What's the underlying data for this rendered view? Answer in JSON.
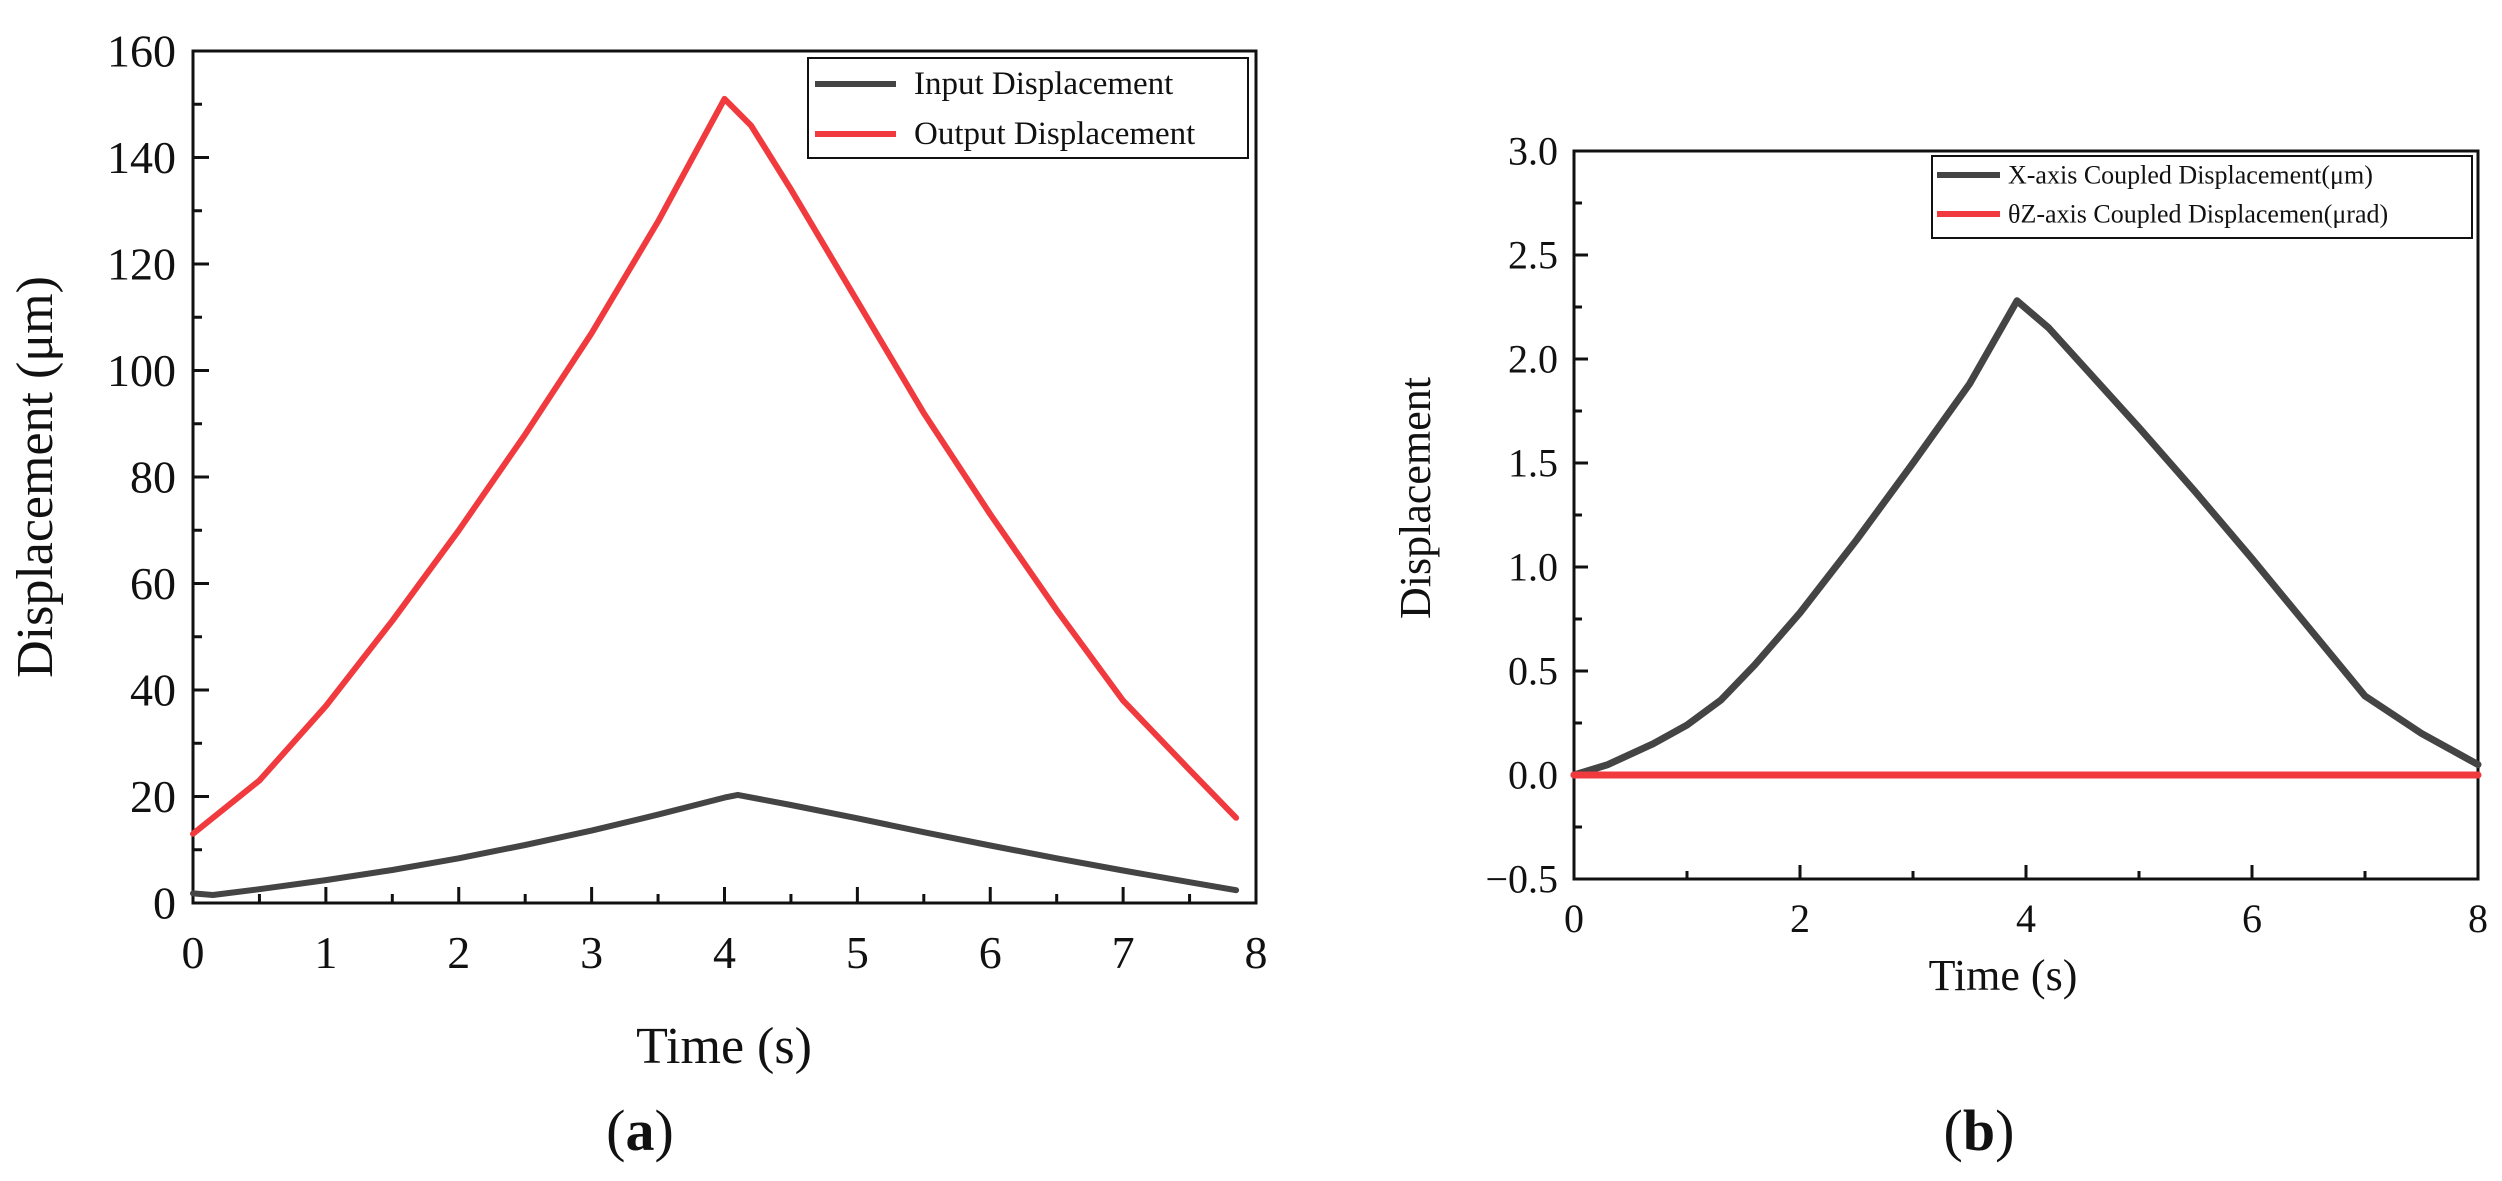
{
  "chart_data": [
    {
      "id": "a",
      "type": "line",
      "caption_letter": "a",
      "title": "",
      "xlabel": "Time (s)",
      "ylabel": "Displacement (μm)",
      "xlim": [
        0,
        8
      ],
      "ylim": [
        0,
        160
      ],
      "xticks": [
        0,
        1,
        2,
        3,
        4,
        5,
        6,
        7,
        8
      ],
      "yticks": [
        0,
        20,
        40,
        60,
        80,
        100,
        120,
        140,
        160
      ],
      "minor_x_step": 0.5,
      "minor_y_step": 10,
      "legend_position": "top-right",
      "series": [
        {
          "name": "Input  Displacement",
          "color": "#444444",
          "x": [
            0,
            0.15,
            0.5,
            1.0,
            1.5,
            2.0,
            2.5,
            3.0,
            3.5,
            4.0,
            4.1,
            4.5,
            5.0,
            5.5,
            6.0,
            6.5,
            7.0,
            7.5,
            7.85
          ],
          "y": [
            1.8,
            1.5,
            2.6,
            4.3,
            6.2,
            8.4,
            10.9,
            13.6,
            16.6,
            19.8,
            20.3,
            18.4,
            15.9,
            13.3,
            10.8,
            8.4,
            6.1,
            3.9,
            2.4
          ]
        },
        {
          "name": "Output Displacement",
          "color": "#f03a3e",
          "x": [
            0,
            0.5,
            1.0,
            1.5,
            2.0,
            2.5,
            3.0,
            3.5,
            4.0,
            4.2,
            4.5,
            5.0,
            5.5,
            6.0,
            6.5,
            7.0,
            7.5,
            7.85
          ],
          "y": [
            13,
            23,
            37,
            53,
            70,
            88,
            107,
            128,
            151,
            146,
            134,
            113,
            92,
            73,
            55,
            38,
            25,
            16
          ]
        }
      ]
    },
    {
      "id": "b",
      "type": "line",
      "caption_letter": "b",
      "title": "",
      "xlabel": "Time (s)",
      "ylabel": "Displacement",
      "xlim": [
        0,
        8
      ],
      "ylim": [
        -0.5,
        3.0
      ],
      "xticks": [
        0,
        2,
        4,
        6,
        8
      ],
      "yticks": [
        -0.5,
        0.0,
        0.5,
        1.0,
        1.5,
        2.0,
        2.5,
        3.0
      ],
      "ytick_labels": [
        "−0.5",
        "0.0",
        "0.5",
        "1.0",
        "1.5",
        "2.0",
        "2.5",
        "3.0"
      ],
      "minor_x_step": 1,
      "minor_y_step": 0.25,
      "legend_position": "top-right",
      "series": [
        {
          "name": "X-axis Coupled Displacement(μm)",
          "color": "#444444",
          "x": [
            0,
            0.3,
            0.7,
            1.0,
            1.3,
            1.6,
            2.0,
            2.5,
            3.0,
            3.5,
            3.92,
            4.2,
            4.6,
            5.0,
            5.5,
            6.0,
            6.5,
            7.0,
            7.5,
            8.0
          ],
          "y": [
            0.0,
            0.05,
            0.15,
            0.24,
            0.36,
            0.53,
            0.78,
            1.13,
            1.5,
            1.88,
            2.28,
            2.15,
            1.91,
            1.67,
            1.36,
            1.04,
            0.71,
            0.38,
            0.2,
            0.05
          ]
        },
        {
          "name": "θZ-axis Coupled Displacemen(μrad)",
          "color": "#f03a3e",
          "x": [
            0,
            8
          ],
          "y": [
            0,
            0
          ]
        }
      ]
    }
  ]
}
